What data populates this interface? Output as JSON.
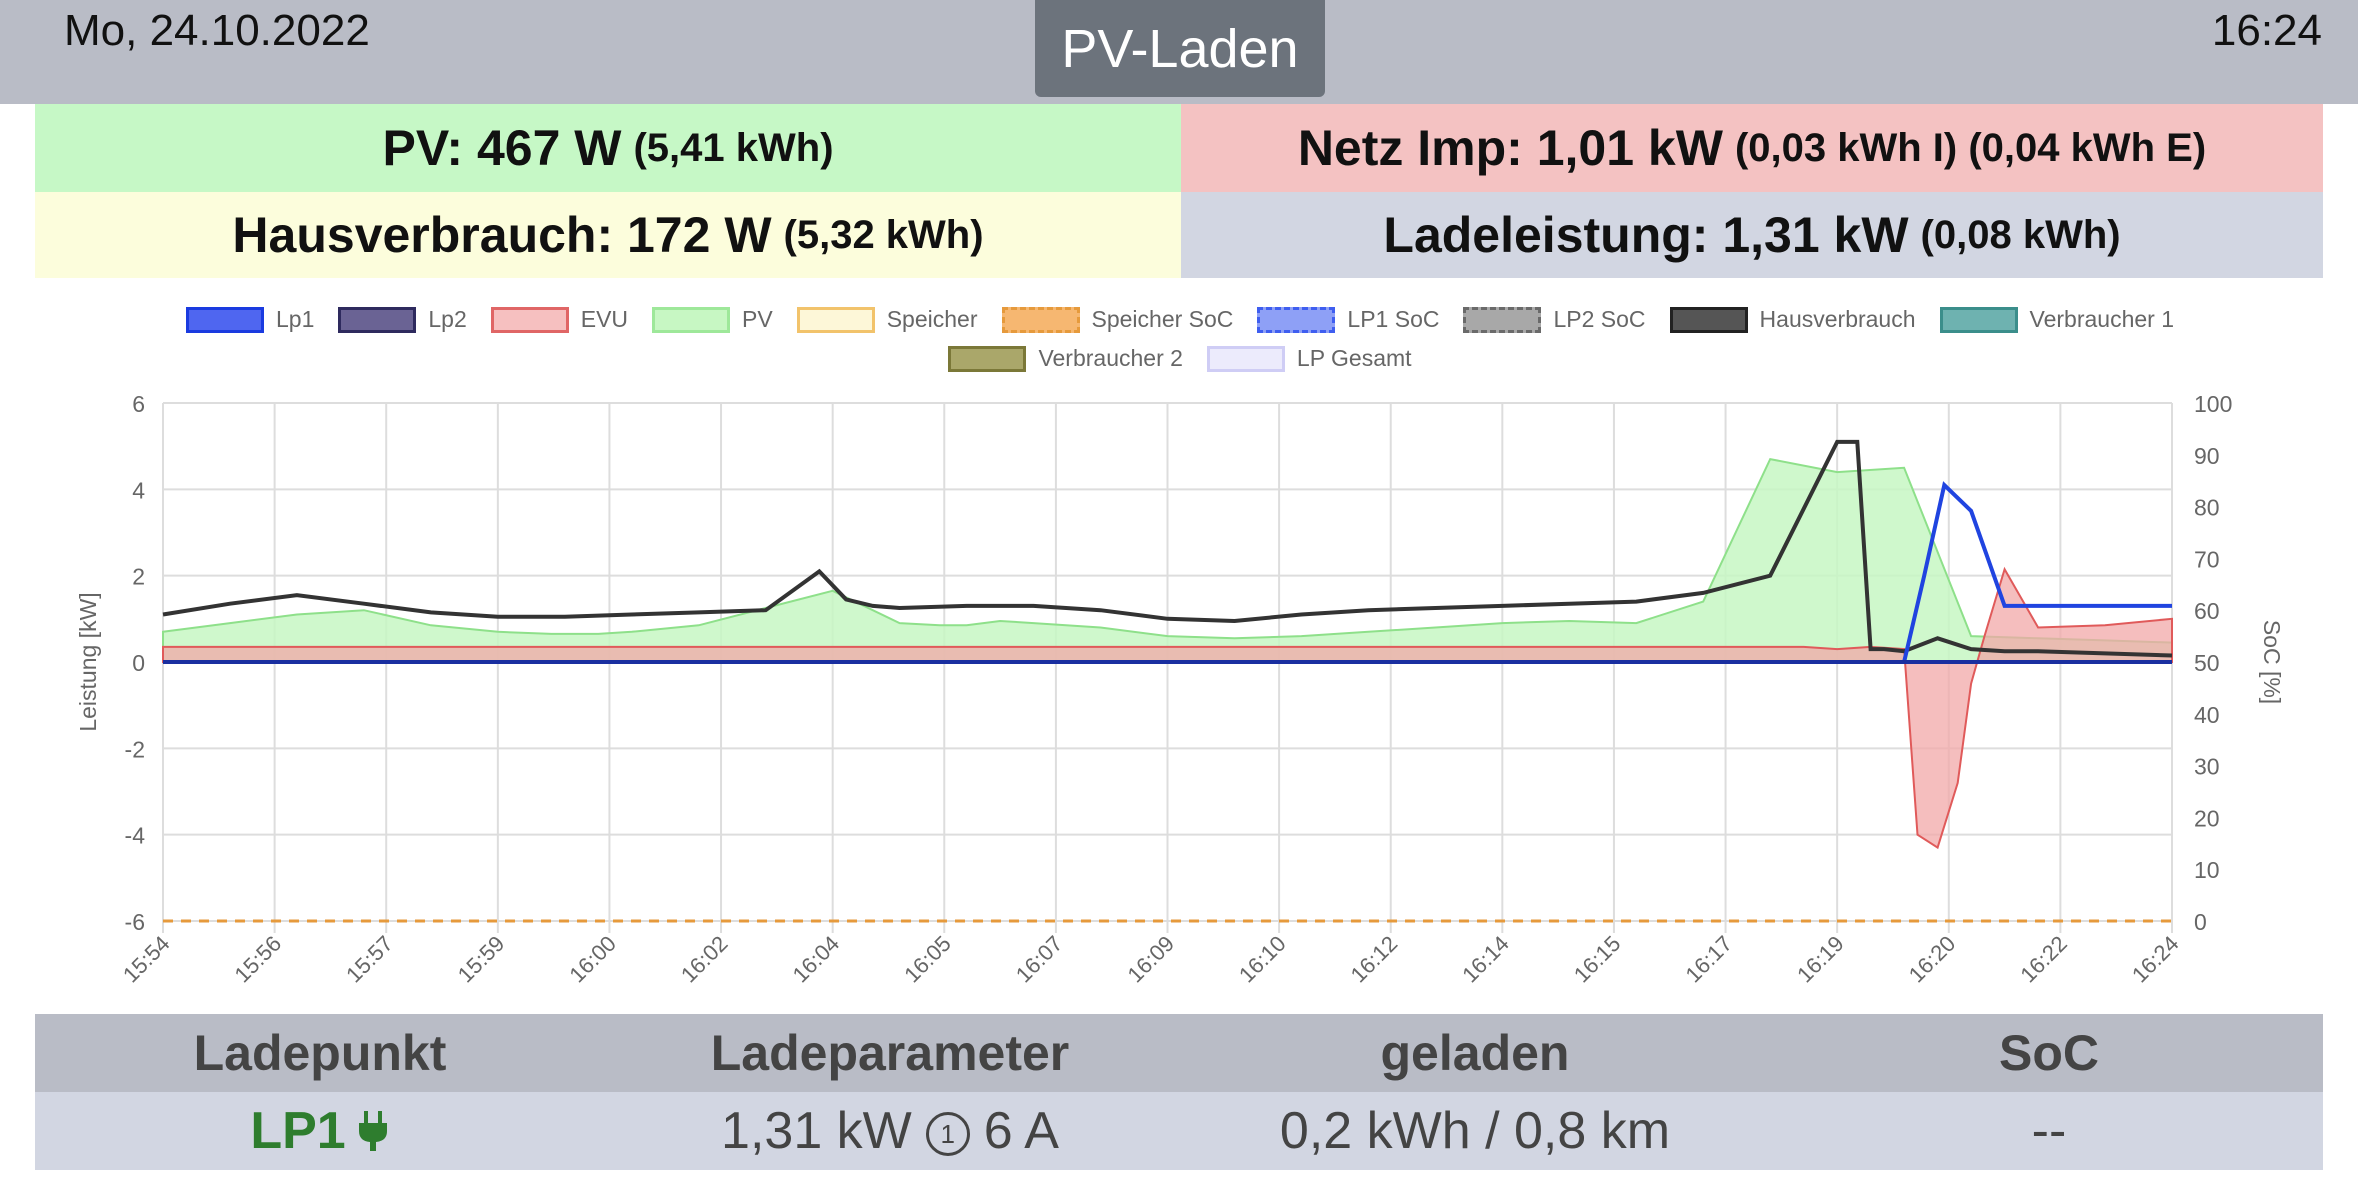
{
  "header": {
    "date": "Mo, 24.10.2022",
    "time": "16:24",
    "mode": "PV-Laden"
  },
  "panels": {
    "pv": {
      "label": "PV: 467 W",
      "sub": "(5,41 kWh)"
    },
    "grid": {
      "label": "Netz Imp: 1,01 kW",
      "sub": "(0,03 kWh I) (0,04 kWh E)"
    },
    "house": {
      "label": "Hausverbrauch: 172 W",
      "sub": "(5,32 kWh)"
    },
    "charge": {
      "label": "Ladeleistung: 1,31 kW",
      "sub": "(0,08 kWh)"
    }
  },
  "chart_data": {
    "type": "line",
    "ylabel": "Leistung [kW]",
    "y2label": "SoC [%]",
    "ylim": [
      -6,
      6
    ],
    "y2lim": [
      0,
      100
    ],
    "yticks": [
      "6",
      "4",
      "2",
      "0",
      "-2",
      "-4",
      "-6"
    ],
    "y2ticks": [
      "100",
      "90",
      "80",
      "70",
      "60",
      "50",
      "40",
      "30",
      "20",
      "10",
      "0"
    ],
    "xlim": [
      0,
      30
    ],
    "xticks": [
      "15:54",
      "15:56",
      "15:57",
      "15:59",
      "16:00",
      "16:02",
      "16:04",
      "16:05",
      "16:07",
      "16:09",
      "16:10",
      "16:12",
      "16:14",
      "16:15",
      "16:17",
      "16:19",
      "16:20",
      "16:22",
      "16:24"
    ],
    "legend": [
      {
        "name": "Lp1",
        "fill": "#4f66f0",
        "stroke": "#1a3be0"
      },
      {
        "name": "Lp2",
        "fill": "#6a6394",
        "stroke": "#2e2a5e"
      },
      {
        "name": "EVU",
        "fill": "#f6c0c0",
        "stroke": "#e06666"
      },
      {
        "name": "PV",
        "fill": "#c7f7c3",
        "stroke": "#9ee89a"
      },
      {
        "name": "Speicher",
        "fill": "#fdf7d8",
        "stroke": "#f2c36b"
      },
      {
        "name": "Speicher SoC",
        "fill": "#f6b771",
        "stroke": "#e69a3c"
      },
      {
        "name": "LP1 SoC",
        "fill": "#8ea0f6",
        "stroke": "#3f5ef0"
      },
      {
        "name": "LP2 SoC",
        "fill": "#a8a8a8",
        "stroke": "#6a6a6a"
      },
      {
        "name": "Hausverbrauch",
        "fill": "#555555",
        "stroke": "#222222"
      },
      {
        "name": "Verbraucher 1",
        "fill": "#6eb2b0",
        "stroke": "#3b8e8b"
      },
      {
        "name": "Verbraucher 2",
        "fill": "#aaa76a",
        "stroke": "#7b7838"
      },
      {
        "name": "LP Gesamt",
        "fill": "#ecebfc",
        "stroke": "#cfcdf5"
      }
    ],
    "series": [
      {
        "name": "PV",
        "x": [
          0,
          1,
          2,
          3,
          4,
          5,
          5.8,
          6.5,
          7,
          8,
          9,
          10,
          11,
          11.6,
          12,
          12.5,
          13,
          14,
          15,
          16,
          17,
          18,
          19,
          20,
          21,
          22,
          23,
          24,
          25,
          26,
          27,
          28,
          29,
          30
        ],
        "values": [
          0.7,
          0.9,
          1.1,
          1.2,
          0.85,
          0.7,
          0.65,
          0.65,
          0.7,
          0.85,
          1.25,
          1.65,
          0.9,
          0.85,
          0.85,
          0.95,
          0.9,
          0.8,
          0.6,
          0.55,
          0.6,
          0.7,
          0.8,
          0.9,
          0.95,
          0.9,
          1.4,
          4.7,
          4.4,
          4.5,
          0.6,
          0.55,
          0.5,
          0.45
        ]
      },
      {
        "name": "Hausverbrauch",
        "x": [
          0,
          1,
          2,
          3,
          4,
          5,
          6,
          7,
          8,
          9,
          9.8,
          10.2,
          10.6,
          11,
          12,
          13,
          14,
          15,
          16,
          17,
          18,
          19,
          20,
          21,
          22,
          23,
          24,
          25,
          25.3,
          25.5,
          25.7,
          26,
          26.5,
          27,
          27.5,
          28,
          29,
          30
        ],
        "values": [
          1.1,
          1.35,
          1.55,
          1.35,
          1.15,
          1.05,
          1.05,
          1.1,
          1.15,
          1.2,
          2.1,
          1.45,
          1.3,
          1.25,
          1.3,
          1.3,
          1.2,
          1.0,
          0.95,
          1.1,
          1.2,
          1.25,
          1.3,
          1.35,
          1.4,
          1.6,
          2.0,
          5.1,
          5.1,
          0.3,
          0.3,
          0.25,
          0.55,
          0.3,
          0.25,
          0.25,
          0.2,
          0.15
        ]
      },
      {
        "name": "EVU",
        "x": [
          0,
          22.5,
          23.5,
          24.0,
          24.5,
          25.0,
          25.5,
          26.0,
          26.2,
          26.5,
          26.8,
          27.0,
          27.2,
          27.5,
          28,
          29,
          30
        ],
        "values": [
          0.35,
          0.35,
          0.35,
          0.35,
          0.35,
          0.3,
          0.35,
          0.3,
          -4.0,
          -4.3,
          -2.8,
          -0.5,
          0.6,
          2.15,
          0.8,
          0.85,
          1.0
        ]
      },
      {
        "name": "Lp1",
        "x": [
          0,
          25.3,
          25.7,
          26.0,
          26.3,
          26.6,
          27.0,
          27.5,
          28,
          29,
          30
        ],
        "values": [
          0,
          0,
          0,
          0,
          2.0,
          4.1,
          3.5,
          1.3,
          1.3,
          1.3,
          1.3
        ]
      },
      {
        "name": "Speicher SoC",
        "x": [
          0,
          30
        ],
        "values": [
          0,
          0
        ]
      }
    ]
  },
  "table": {
    "headers": [
      "Ladepunkt",
      "Ladeparameter",
      "geladen",
      "SoC"
    ],
    "row": {
      "name": "LP1",
      "power": "1,31 kW",
      "phases": "1",
      "current": "6 A",
      "charged": "0,2 kWh / 0,8 km",
      "soc": "--"
    }
  }
}
